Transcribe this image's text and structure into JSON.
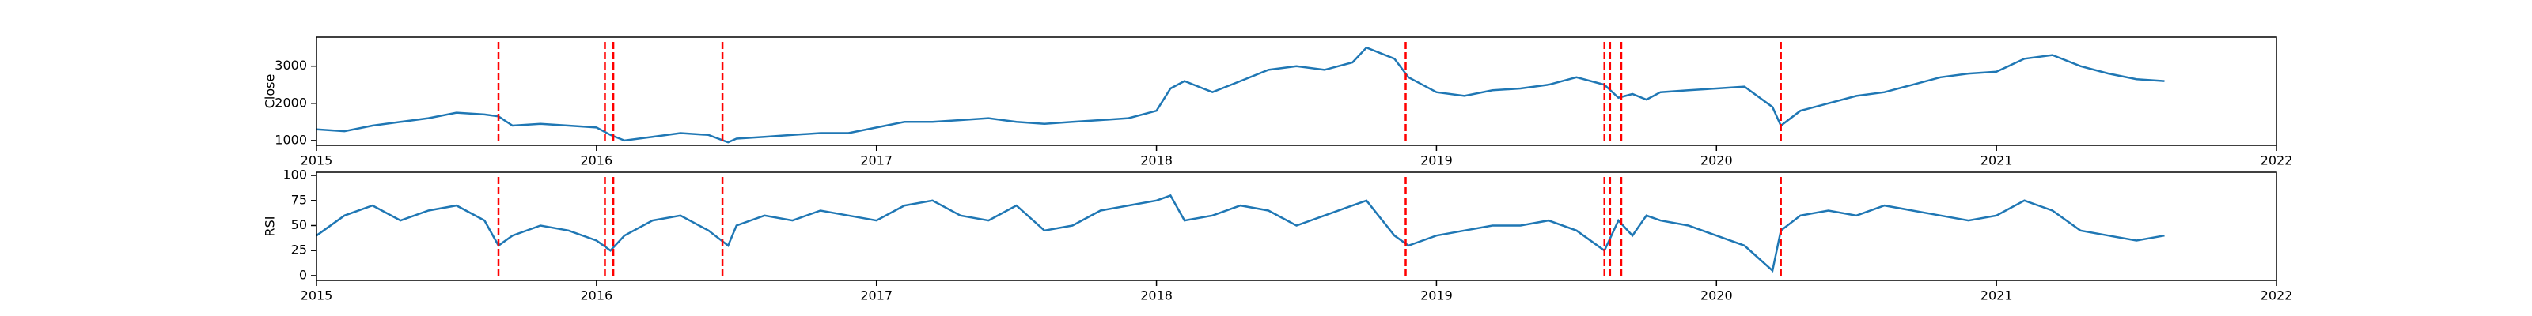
{
  "chart_data": [
    {
      "type": "line",
      "y_label": "Close",
      "x": [
        2015.0,
        2015.1,
        2015.2,
        2015.3,
        2015.4,
        2015.5,
        2015.6,
        2015.65,
        2015.7,
        2015.8,
        2015.9,
        2016.0,
        2016.05,
        2016.1,
        2016.2,
        2016.3,
        2016.4,
        2016.47,
        2016.5,
        2016.6,
        2016.7,
        2016.8,
        2016.9,
        2017.0,
        2017.1,
        2017.2,
        2017.3,
        2017.4,
        2017.5,
        2017.6,
        2017.7,
        2017.8,
        2017.9,
        2018.0,
        2018.05,
        2018.1,
        2018.2,
        2018.3,
        2018.4,
        2018.5,
        2018.6,
        2018.7,
        2018.75,
        2018.85,
        2018.9,
        2019.0,
        2019.1,
        2019.2,
        2019.3,
        2019.4,
        2019.5,
        2019.6,
        2019.65,
        2019.7,
        2019.75,
        2019.8,
        2019.9,
        2020.0,
        2020.1,
        2020.2,
        2020.23,
        2020.3,
        2020.4,
        2020.5,
        2020.6,
        2020.7,
        2020.8,
        2020.9,
        2021.0,
        2021.1,
        2021.2,
        2021.3,
        2021.4,
        2021.5,
        2021.6
      ],
      "series": [
        {
          "color": "#1f77b4",
          "values": [
            1300,
            1250,
            1400,
            1500,
            1600,
            1750,
            1700,
            1650,
            1400,
            1450,
            1400,
            1350,
            1150,
            1000,
            1100,
            1200,
            1150,
            950,
            1050,
            1100,
            1150,
            1200,
            1200,
            1350,
            1500,
            1500,
            1550,
            1600,
            1500,
            1450,
            1500,
            1550,
            1600,
            1800,
            2400,
            2600,
            2300,
            2600,
            2900,
            3000,
            2900,
            3100,
            3500,
            3200,
            2700,
            2300,
            2200,
            2350,
            2400,
            2500,
            2700,
            2500,
            2150,
            2250,
            2100,
            2300,
            2350,
            2400,
            2450,
            1900,
            1400,
            1800,
            2000,
            2200,
            2300,
            2500,
            2700,
            2800,
            2850,
            3200,
            3300,
            3000,
            2800,
            2650,
            2600
          ]
        }
      ],
      "vlines": [
        2015.65,
        2016.03,
        2016.06,
        2016.45,
        2018.89,
        2019.6,
        2019.62,
        2019.66,
        2020.23
      ],
      "vline_color": "#ff0000",
      "xlim": [
        2015,
        2022
      ],
      "xticks": [
        2015,
        2016,
        2017,
        2018,
        2019,
        2020,
        2021,
        2022
      ],
      "ylim": [
        870,
        3780
      ],
      "yticks": [
        1000,
        2000,
        3000
      ]
    },
    {
      "type": "line",
      "y_label": "RSI",
      "x": [
        2015.0,
        2015.1,
        2015.2,
        2015.3,
        2015.4,
        2015.5,
        2015.6,
        2015.65,
        2015.7,
        2015.8,
        2015.9,
        2016.0,
        2016.05,
        2016.1,
        2016.2,
        2016.3,
        2016.4,
        2016.47,
        2016.5,
        2016.6,
        2016.7,
        2016.8,
        2016.9,
        2017.0,
        2017.1,
        2017.2,
        2017.3,
        2017.4,
        2017.5,
        2017.6,
        2017.7,
        2017.8,
        2017.9,
        2018.0,
        2018.05,
        2018.1,
        2018.2,
        2018.3,
        2018.4,
        2018.5,
        2018.6,
        2018.7,
        2018.75,
        2018.85,
        2018.9,
        2019.0,
        2019.1,
        2019.2,
        2019.3,
        2019.4,
        2019.5,
        2019.6,
        2019.65,
        2019.7,
        2019.75,
        2019.8,
        2019.9,
        2020.0,
        2020.1,
        2020.2,
        2020.23,
        2020.3,
        2020.4,
        2020.5,
        2020.6,
        2020.7,
        2020.8,
        2020.9,
        2021.0,
        2021.1,
        2021.2,
        2021.3,
        2021.4,
        2021.5,
        2021.6
      ],
      "series": [
        {
          "color": "#1f77b4",
          "values": [
            40,
            60,
            70,
            55,
            65,
            70,
            55,
            30,
            40,
            50,
            45,
            35,
            25,
            40,
            55,
            60,
            45,
            30,
            50,
            60,
            55,
            65,
            60,
            55,
            70,
            75,
            60,
            55,
            70,
            45,
            50,
            65,
            70,
            75,
            80,
            55,
            60,
            70,
            65,
            50,
            60,
            70,
            75,
            40,
            30,
            40,
            45,
            50,
            50,
            55,
            45,
            25,
            55,
            40,
            60,
            55,
            50,
            40,
            30,
            5,
            45,
            60,
            65,
            60,
            70,
            65,
            60,
            55,
            60,
            75,
            65,
            45,
            40,
            35,
            40
          ]
        }
      ],
      "vlines": [
        2015.65,
        2016.03,
        2016.06,
        2016.45,
        2018.89,
        2019.6,
        2019.62,
        2019.66,
        2020.23
      ],
      "vline_color": "#ff0000",
      "xlim": [
        2015,
        2022
      ],
      "xticks": [
        2015,
        2016,
        2017,
        2018,
        2019,
        2020,
        2021,
        2022
      ],
      "ylim": [
        -4.8,
        103.2
      ],
      "yticks": [
        0,
        25,
        50,
        75,
        100
      ]
    }
  ]
}
